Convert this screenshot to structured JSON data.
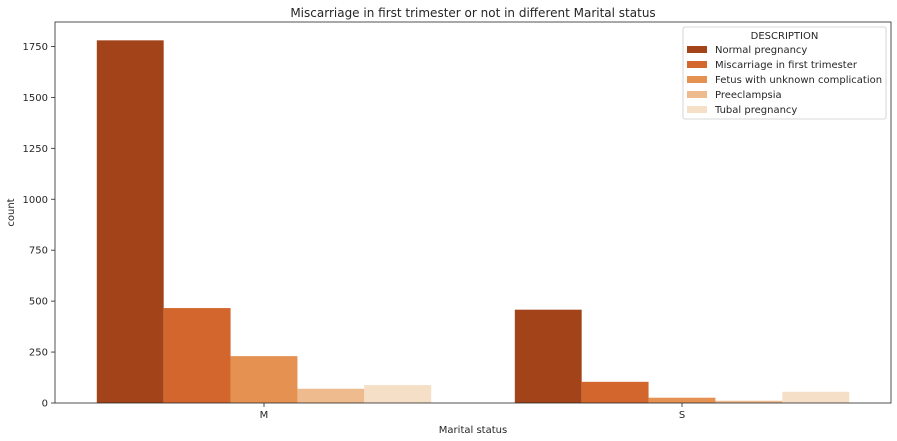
{
  "chart_data": {
    "type": "bar",
    "title": "Miscarriage in first trimester or not in different Marital status",
    "xlabel": "Marital status",
    "ylabel": "count",
    "categories": [
      "M",
      "S"
    ],
    "series": [
      {
        "name": "Normal pregnancy",
        "values": [
          1780,
          458
        ],
        "color": "#a3431a"
      },
      {
        "name": "Miscarriage in first trimester",
        "values": [
          466,
          104
        ],
        "color": "#d2662c"
      },
      {
        "name": "Fetus with unknown complication",
        "values": [
          230,
          26
        ],
        "color": "#e59152"
      },
      {
        "name": "Preeclampsia",
        "values": [
          70,
          11
        ],
        "color": "#eebb8e"
      },
      {
        "name": "Tubal pregnancy",
        "values": [
          88,
          55
        ],
        "color": "#f5dfc6"
      }
    ],
    "ylim": [
      0,
      1870
    ],
    "yticks": [
      0,
      250,
      500,
      750,
      1000,
      1250,
      1500,
      1750
    ],
    "legend": {
      "title": "DESCRIPTION",
      "position": "top-right"
    },
    "grid": false
  }
}
